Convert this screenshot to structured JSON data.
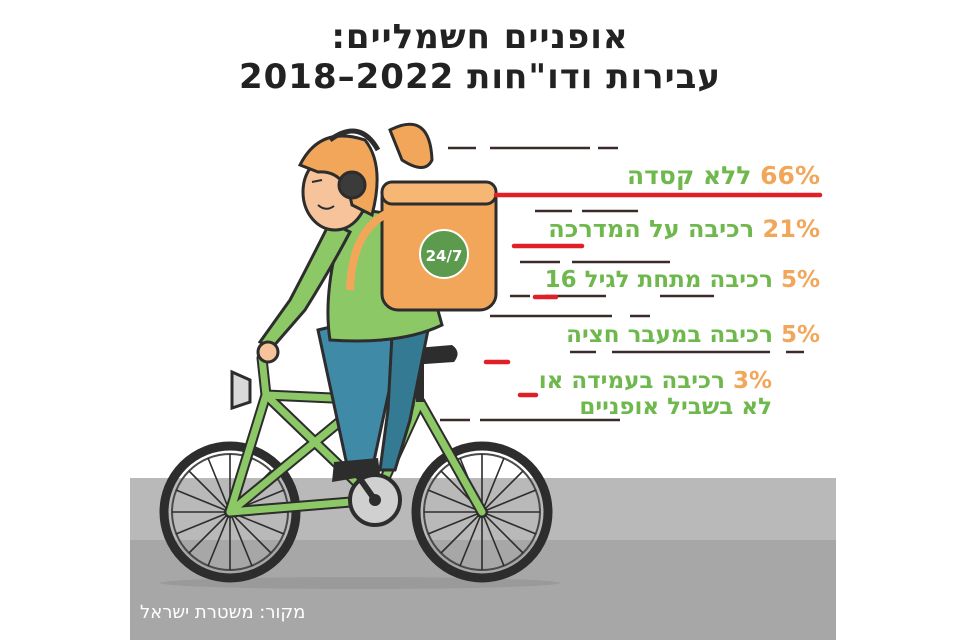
{
  "title_line1": "אופניים חשמליים:",
  "title_line2": "עבירות ודו\"חות 2022–2018",
  "source": "מקור: משטרת ישראל",
  "backpack_text": "24/7",
  "colors": {
    "percent": "#f2a65a",
    "label": "#6fb84d",
    "accent_line": "#e01f26",
    "road": "#b9b9b9"
  },
  "chart_data": {
    "type": "bar",
    "title": "אופניים חשמליים: עבירות ודו\"חות 2022–2018",
    "categories": [
      "ללא קסדה",
      "רכיבה על המדרכה",
      "רכיבה מתחת לגיל 16",
      "רכיבה במעבר חציה",
      "רכיבה בעמידה או לא בשביל אופניים"
    ],
    "values": [
      66,
      21,
      5,
      5,
      3
    ],
    "unit": "%",
    "items": [
      {
        "percent": "66%",
        "label": "ללא קסדה"
      },
      {
        "percent": "21%",
        "label": "רכיבה על המדרכה"
      },
      {
        "percent": "5%",
        "label": "רכיבה מתחת לגיל 16"
      },
      {
        "percent": "5%",
        "label": "רכיבה במעבר חציה"
      },
      {
        "percent": "3%",
        "label": "רכיבה בעמידה או",
        "label2": "לא בשביל אופניים"
      }
    ]
  }
}
